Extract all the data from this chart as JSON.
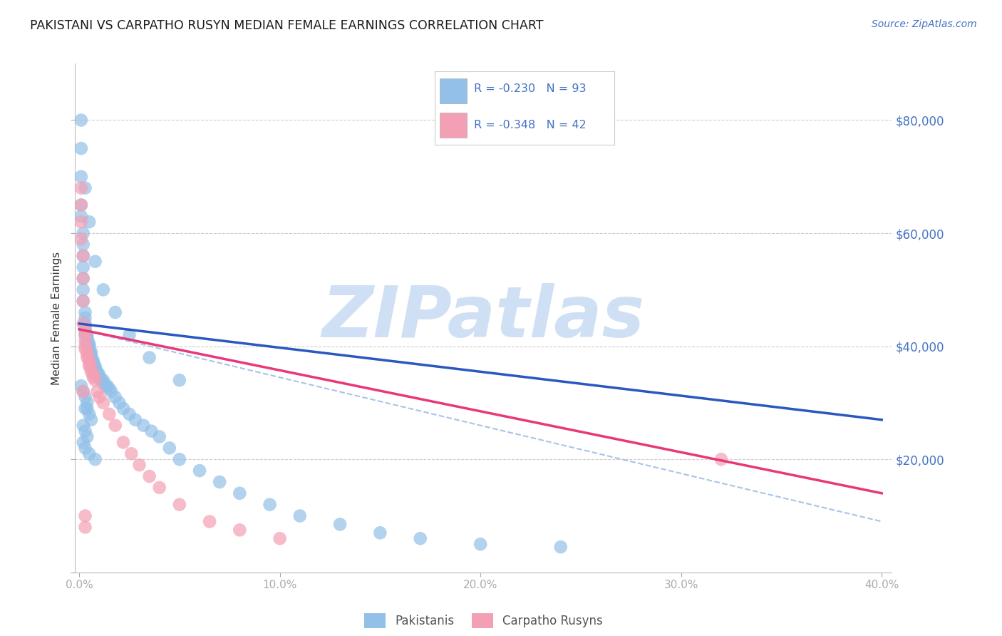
{
  "title": "PAKISTANI VS CARPATHO RUSYN MEDIAN FEMALE EARNINGS CORRELATION CHART",
  "source": "Source: ZipAtlas.com",
  "ylabel": "Median Female Earnings",
  "ylim": [
    0,
    90000
  ],
  "xlim": [
    -0.002,
    0.405
  ],
  "right_ytick_values": [
    20000,
    40000,
    60000,
    80000
  ],
  "right_ytick_labels": [
    "$20,000",
    "$40,000",
    "$60,000",
    "$80,000"
  ],
  "xtick_pos": [
    0.0,
    0.1,
    0.2,
    0.3,
    0.4
  ],
  "xtick_labels": [
    "0.0%",
    "10.0%",
    "20.0%",
    "30.0%",
    "40.0%"
  ],
  "blue_color": "#92C0E8",
  "pink_color": "#F4A0B4",
  "blue_line_color": "#2858C0",
  "pink_line_color": "#E83878",
  "dashed_line_color": "#A8C4E8",
  "watermark_color": "#D0E0F4",
  "background_color": "#FFFFFF",
  "grid_color": "#C8C8C8",
  "legend_text_color": "#4472C4",
  "right_axis_color": "#4472C4",
  "title_color": "#1a1a1a",
  "source_color": "#4472C4",
  "blue_trend": [
    0.0,
    44000,
    0.4,
    27000
  ],
  "pink_trend": [
    0.0,
    43000,
    0.4,
    14000
  ],
  "blue_dashed": [
    0.0,
    43000,
    0.4,
    9000
  ],
  "pak_x": [
    0.001,
    0.001,
    0.001,
    0.001,
    0.001,
    0.002,
    0.002,
    0.002,
    0.002,
    0.002,
    0.002,
    0.002,
    0.003,
    0.003,
    0.003,
    0.003,
    0.003,
    0.003,
    0.003,
    0.004,
    0.004,
    0.004,
    0.004,
    0.004,
    0.005,
    0.005,
    0.005,
    0.005,
    0.005,
    0.006,
    0.006,
    0.006,
    0.006,
    0.007,
    0.007,
    0.007,
    0.008,
    0.008,
    0.008,
    0.009,
    0.009,
    0.01,
    0.01,
    0.011,
    0.012,
    0.012,
    0.013,
    0.014,
    0.015,
    0.016,
    0.018,
    0.02,
    0.022,
    0.025,
    0.028,
    0.032,
    0.036,
    0.04,
    0.045,
    0.05,
    0.06,
    0.07,
    0.08,
    0.095,
    0.11,
    0.13,
    0.15,
    0.17,
    0.2,
    0.24,
    0.003,
    0.005,
    0.008,
    0.012,
    0.018,
    0.025,
    0.035,
    0.05,
    0.001,
    0.002,
    0.003,
    0.004,
    0.003,
    0.004,
    0.005,
    0.006,
    0.002,
    0.003,
    0.004,
    0.002,
    0.003,
    0.005,
    0.008
  ],
  "pak_y": [
    80000,
    75000,
    70000,
    65000,
    63000,
    60000,
    58000,
    56000,
    54000,
    52000,
    50000,
    48000,
    46000,
    45000,
    44000,
    43500,
    43000,
    42500,
    42000,
    42000,
    41500,
    41000,
    41000,
    40500,
    40500,
    40000,
    40000,
    39500,
    39000,
    39000,
    38500,
    38000,
    38000,
    37500,
    37000,
    37000,
    36500,
    36000,
    36000,
    35500,
    35000,
    35000,
    34500,
    34000,
    34000,
    33500,
    33000,
    33000,
    32500,
    32000,
    31000,
    30000,
    29000,
    28000,
    27000,
    26000,
    25000,
    24000,
    22000,
    20000,
    18000,
    16000,
    14000,
    12000,
    10000,
    8500,
    7000,
    6000,
    5000,
    4500,
    68000,
    62000,
    55000,
    50000,
    46000,
    42000,
    38000,
    34000,
    33000,
    32000,
    31000,
    30000,
    29000,
    29000,
    28000,
    27000,
    26000,
    25000,
    24000,
    23000,
    22000,
    21000,
    20000
  ],
  "rus_x": [
    0.001,
    0.001,
    0.001,
    0.001,
    0.002,
    0.002,
    0.002,
    0.002,
    0.003,
    0.003,
    0.003,
    0.003,
    0.003,
    0.004,
    0.004,
    0.004,
    0.005,
    0.005,
    0.005,
    0.006,
    0.006,
    0.007,
    0.007,
    0.008,
    0.009,
    0.01,
    0.012,
    0.015,
    0.018,
    0.022,
    0.026,
    0.03,
    0.035,
    0.04,
    0.05,
    0.065,
    0.08,
    0.1,
    0.32,
    0.002,
    0.003,
    0.003
  ],
  "rus_y": [
    68000,
    65000,
    62000,
    59000,
    56000,
    52000,
    48000,
    44000,
    43000,
    42000,
    41000,
    40000,
    39500,
    39000,
    38500,
    38000,
    37500,
    37000,
    36500,
    36000,
    35500,
    35000,
    34500,
    34000,
    32000,
    31000,
    30000,
    28000,
    26000,
    23000,
    21000,
    19000,
    17000,
    15000,
    12000,
    9000,
    7500,
    6000,
    20000,
    32000,
    10000,
    8000
  ]
}
